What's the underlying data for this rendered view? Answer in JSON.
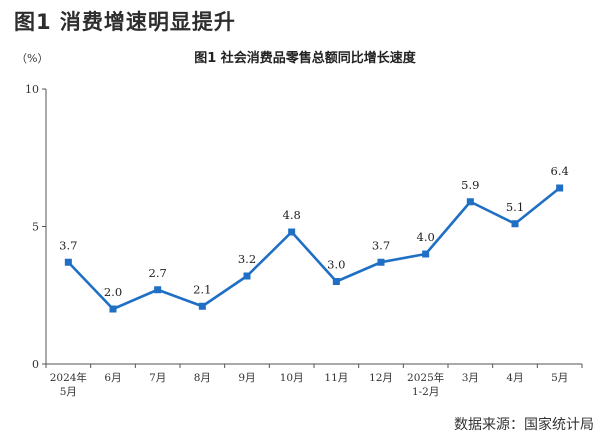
{
  "page": {
    "headline": "图1 消费增速明显提升",
    "source": "数据来源：国家统计局"
  },
  "chart_data": {
    "type": "line",
    "title": "图1  社会消费品零售总额同比增长速度",
    "unit": "（%）",
    "xlabel": "",
    "ylabel": "",
    "ylim": [
      0,
      10
    ],
    "yticks": [
      "0",
      "5",
      "10"
    ],
    "grid": false,
    "categories": [
      "2024年\n5月",
      "6月",
      "7月",
      "8月",
      "9月",
      "10月",
      "11月",
      "12月",
      "2025年\n1-2月",
      "3月",
      "4月",
      "5月"
    ],
    "series": [
      {
        "name": "",
        "values": [
          3.7,
          2.0,
          2.7,
          2.1,
          3.2,
          4.8,
          3.0,
          3.7,
          4.0,
          5.9,
          5.1,
          6.4
        ],
        "labels": [
          "3.7",
          "2.0",
          "2.7",
          "2.1",
          "3.2",
          "4.8",
          "3.0",
          "3.7",
          "4.0",
          "5.9",
          "5.1",
          "6.4"
        ]
      }
    ],
    "colors": {
      "line": "#1f6fc5",
      "axis": "#555555"
    }
  }
}
